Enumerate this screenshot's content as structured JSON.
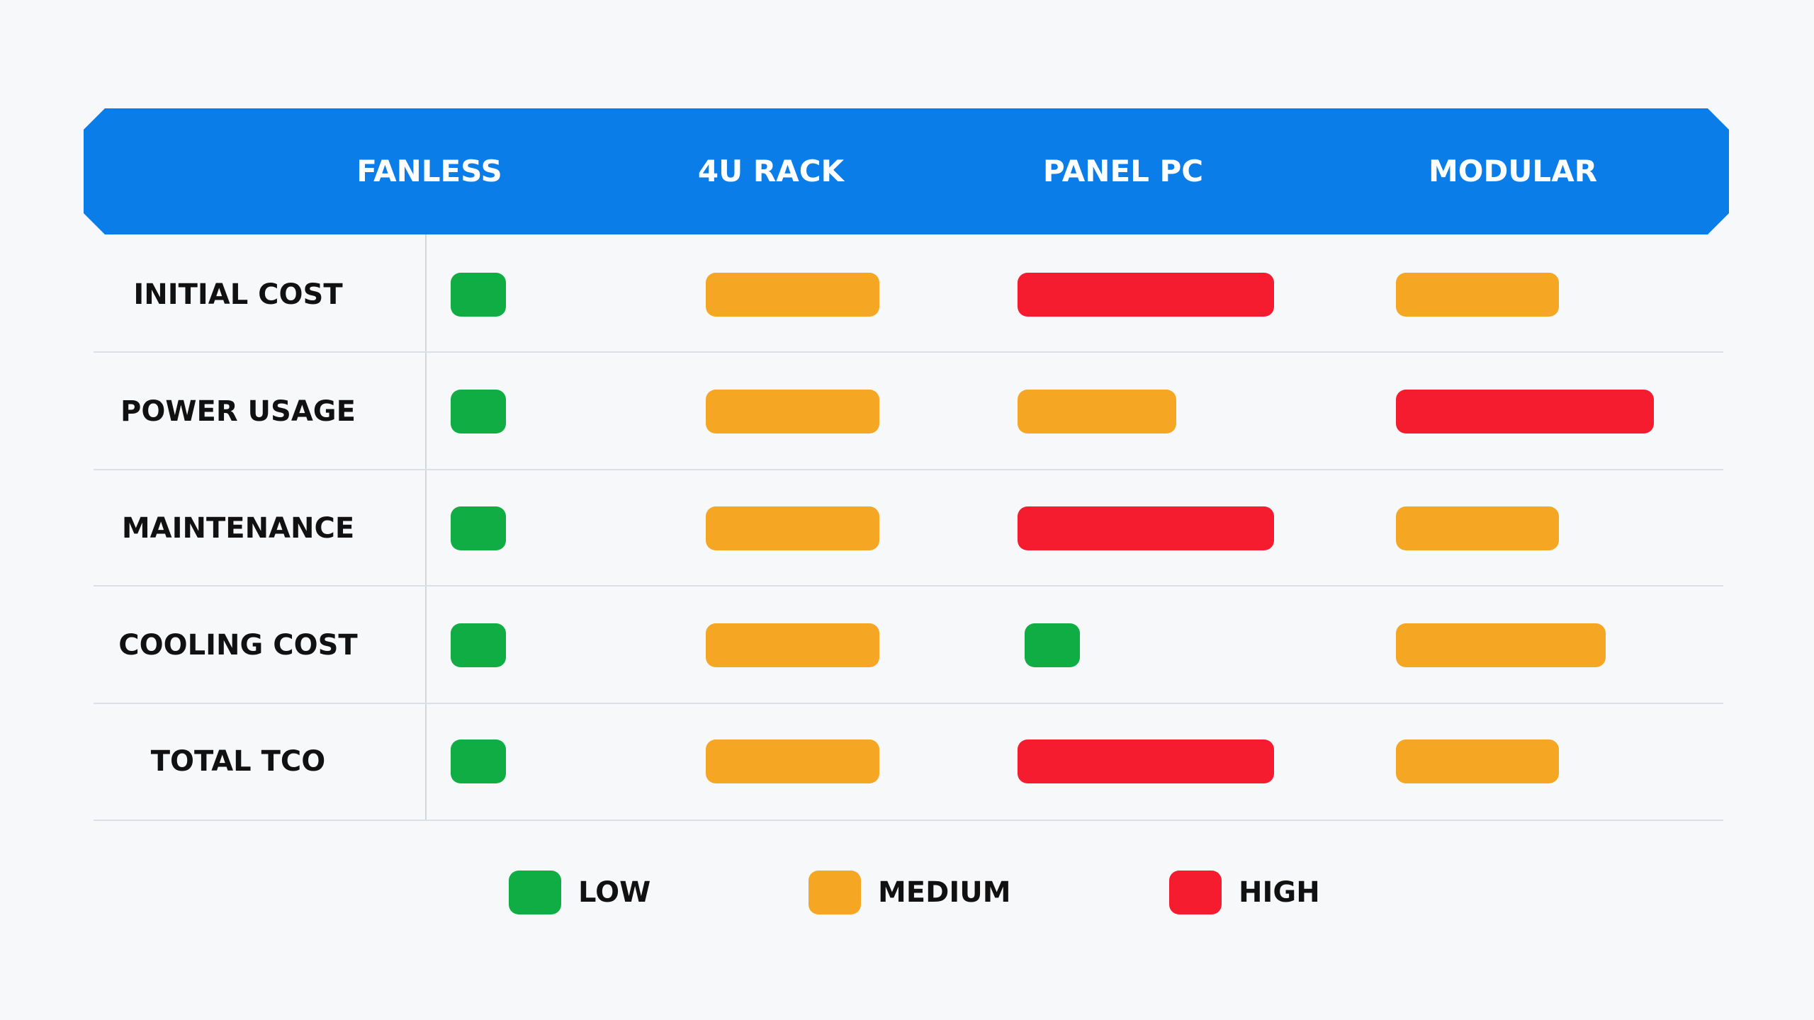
{
  "chart_data": {
    "type": "table",
    "columns": [
      "FANLESS",
      "4U RACK",
      "PANEL PC",
      "MODULAR"
    ],
    "rows": [
      {
        "label": "INITIAL COST",
        "levels": [
          "LOW",
          "MEDIUM",
          "HIGH",
          "MEDIUM"
        ]
      },
      {
        "label": "POWER USAGE",
        "levels": [
          "LOW",
          "MEDIUM",
          "MEDIUM",
          "HIGH"
        ]
      },
      {
        "label": "MAINTENANCE",
        "levels": [
          "LOW",
          "MEDIUM",
          "HIGH",
          "MEDIUM"
        ]
      },
      {
        "label": "COOLING COST",
        "levels": [
          "LOW",
          "MEDIUM",
          "LOW",
          "MEDIUM"
        ]
      },
      {
        "label": "TOTAL TCO",
        "levels": [
          "LOW",
          "MEDIUM",
          "HIGH",
          "MEDIUM"
        ]
      }
    ],
    "legend": [
      {
        "key": "LOW",
        "label": "LOW",
        "color": "#10ad44"
      },
      {
        "key": "MEDIUM",
        "label": "MEDIUM",
        "color": "#f5a623"
      },
      {
        "key": "HIGH",
        "label": "HIGH",
        "color": "#f51c30"
      }
    ],
    "header_color": "#0a7de8",
    "legend_placement": "bottom-center"
  }
}
